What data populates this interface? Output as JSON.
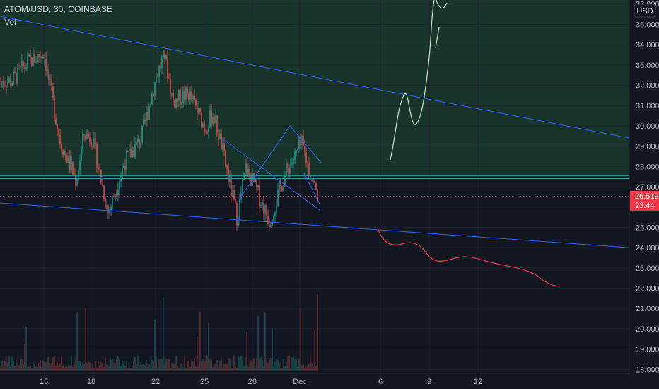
{
  "header": {
    "symbol": "ATOM/USD, 30, COINBASE",
    "indicator": "Vol",
    "currency": "USD"
  },
  "price_label": {
    "value": "26.519",
    "countdown": "23:44"
  },
  "chart_data": {
    "type": "candlestick",
    "y_axis": {
      "range": [
        17.8,
        36.2
      ],
      "ticks": [
        18.0,
        19.0,
        20.0,
        21.0,
        22.0,
        23.0,
        24.0,
        25.0,
        26.0,
        27.0,
        28.0,
        29.0,
        30.0,
        31.0,
        32.0,
        33.0,
        34.0,
        35.0,
        36.0
      ],
      "tick_labels": [
        "18.000",
        "19.000",
        "20.000",
        "21.000",
        "22.000",
        "23.000",
        "24.000",
        "25.000",
        "26.000",
        "27.000",
        "28.000",
        "29.000",
        "30.000",
        "31.000",
        "32.000",
        "33.000",
        "34.000",
        "35.000",
        "36.000"
      ]
    },
    "x_axis": {
      "tick_labels": [
        "15",
        "18",
        "22",
        "25",
        "28",
        "Dec",
        "6",
        "9",
        "12"
      ]
    },
    "price_series": [
      {
        "x": "Nov 13",
        "y": 32.2
      },
      {
        "x": "Nov 14",
        "y": 33.1
      },
      {
        "x": "Nov 15",
        "y": 33.6
      },
      {
        "x": "Nov 16",
        "y": 29.3
      },
      {
        "x": "Nov 17",
        "y": 27.3
      },
      {
        "x": "Nov 17.5",
        "y": 29.6
      },
      {
        "x": "Nov 18",
        "y": 29.4
      },
      {
        "x": "Nov 19",
        "y": 25.7
      },
      {
        "x": "Nov 20",
        "y": 28.2
      },
      {
        "x": "Nov 21",
        "y": 29.3
      },
      {
        "x": "Nov 22",
        "y": 32.5
      },
      {
        "x": "Nov 22.5",
        "y": 33.5
      },
      {
        "x": "Nov 23",
        "y": 31.2
      },
      {
        "x": "Nov 24",
        "y": 31.6
      },
      {
        "x": "Nov 25",
        "y": 29.9
      },
      {
        "x": "Nov 25.5",
        "y": 30.6
      },
      {
        "x": "Nov 26",
        "y": 29.1
      },
      {
        "x": "Nov 27",
        "y": 25.4
      },
      {
        "x": "Nov 27.5",
        "y": 27.9
      },
      {
        "x": "Nov 28",
        "y": 27.2
      },
      {
        "x": "Nov 29",
        "y": 25.3
      },
      {
        "x": "Nov 30",
        "y": 27.7
      },
      {
        "x": "Dec 1",
        "y": 29.1
      },
      {
        "x": "Dec 1.5",
        "y": 27.7
      },
      {
        "x": "Dec 2",
        "y": 26.52
      }
    ],
    "last_price": 26.519,
    "annotations": [
      {
        "type": "trendline",
        "color": "#2962ff",
        "from": {
          "x": "Nov 11",
          "y": 35.4
        },
        "to": {
          "x": "Dec 19",
          "y": 29.4
        }
      },
      {
        "type": "trendline",
        "color": "#2962ff",
        "from": {
          "x": "Nov 11",
          "y": 26.2
        },
        "to": {
          "x": "Dec 19",
          "y": 24.0
        }
      },
      {
        "type": "horizontal_band",
        "color": "#26a69a",
        "y_low": 27.4,
        "y_high": 27.55
      },
      {
        "type": "shaded_zone",
        "color": "#26a69a",
        "y_low": 27.5,
        "y_high": 36.2
      },
      {
        "type": "projection_bullish",
        "color": "#c8e6c9"
      },
      {
        "type": "projection_bearish",
        "color": "#f23645"
      },
      {
        "type": "pattern_lines",
        "color": "#2962ff"
      }
    ]
  }
}
